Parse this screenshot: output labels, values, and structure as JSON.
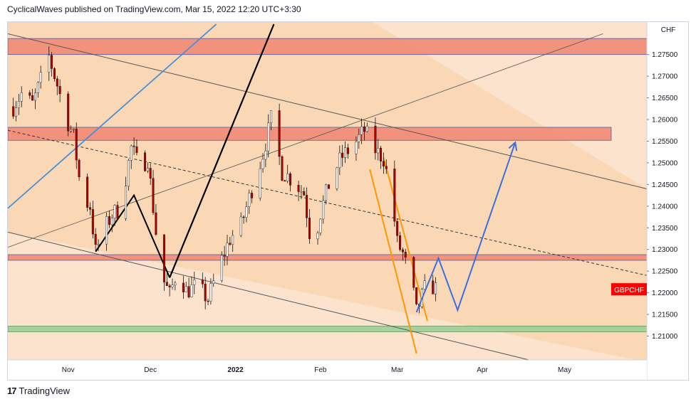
{
  "header": {
    "publisher_text": "CyclicalWaves published on TradingView.com, Mar 15, 2022 12:20 UTC+3:30"
  },
  "footer": {
    "logo_glyph": "17",
    "brand": "TradingView"
  },
  "colors": {
    "background": "#fbe3cd",
    "channel_fill": "#f9d4ac",
    "resistance_zone": "#f28b78",
    "support_zone": "#9fcf9a",
    "candle": "#b00000",
    "projection": "#3b6fe0",
    "wedge": "#ff9800",
    "trendline": "#000000",
    "fan_line": "#4a90d9",
    "symbol_badge": "#ff0000"
  },
  "chart_data": {
    "type": "candlestick",
    "symbol": "GBPCHF",
    "currency": "CHF",
    "x_ticks": [
      "Nov",
      "Dec",
      "2022",
      "Feb",
      "Mar",
      "Apr",
      "May"
    ],
    "y_ticks": [
      "1.27500",
      "1.27000",
      "1.26500",
      "1.26000",
      "1.25500",
      "1.25000",
      "1.24500",
      "1.24000",
      "1.23500",
      "1.23000",
      "1.22500",
      "1.22000",
      "1.21500",
      "1.21000"
    ],
    "ylim": [
      1.2045,
      1.2825
    ],
    "last_price": "1.22090",
    "price_path": [
      [
        "2021-10-12",
        1.263
      ],
      [
        "2021-10-15",
        1.266
      ],
      [
        "2021-10-19",
        1.2635
      ],
      [
        "2021-10-22",
        1.269
      ],
      [
        "2021-10-25",
        1.2745
      ],
      [
        "2021-10-28",
        1.268
      ],
      [
        "2021-10-31",
        1.261
      ],
      [
        "2021-11-03",
        1.256
      ],
      [
        "2021-11-06",
        1.242
      ],
      [
        "2021-11-09",
        1.24
      ],
      [
        "2021-11-11",
        1.2295
      ],
      [
        "2021-11-14",
        1.2345
      ],
      [
        "2021-11-17",
        1.238
      ],
      [
        "2021-11-20",
        1.2395
      ],
      [
        "2021-11-24",
        1.2535
      ],
      [
        "2021-11-27",
        1.249
      ],
      [
        "2021-11-30",
        1.251
      ],
      [
        "2021-12-03",
        1.234
      ],
      [
        "2021-12-06",
        1.2225
      ],
      [
        "2021-12-08",
        1.2195
      ],
      [
        "2021-12-11",
        1.2255
      ],
      [
        "2021-12-14",
        1.2205
      ],
      [
        "2021-12-18",
        1.2215
      ],
      [
        "2021-12-22",
        1.2185
      ],
      [
        "2021-12-26",
        1.226
      ],
      [
        "2021-12-30",
        1.2325
      ],
      [
        "2022-01-03",
        1.2355
      ],
      [
        "2022-01-07",
        1.244
      ],
      [
        "2022-01-11",
        1.252
      ],
      [
        "2022-01-14",
        1.26
      ],
      [
        "2022-01-18",
        1.248
      ],
      [
        "2022-01-22",
        1.246
      ],
      [
        "2022-01-26",
        1.243
      ],
      [
        "2022-01-29",
        1.2295
      ],
      [
        "2022-02-01",
        1.2385
      ],
      [
        "2022-02-05",
        1.247
      ],
      [
        "2022-02-09",
        1.2515
      ],
      [
        "2022-02-13",
        1.254
      ],
      [
        "2022-02-17",
        1.2575
      ],
      [
        "2022-02-21",
        1.253
      ],
      [
        "2022-02-24",
        1.251
      ],
      [
        "2022-02-27",
        1.242
      ],
      [
        "2022-03-01",
        1.2315
      ],
      [
        "2022-03-03",
        1.229
      ],
      [
        "2022-03-05",
        1.2245
      ],
      [
        "2022-03-07",
        1.2195
      ],
      [
        "2022-03-08",
        1.2155
      ],
      [
        "2022-03-10",
        1.219
      ],
      [
        "2022-03-12",
        1.2225
      ],
      [
        "2022-03-15",
        1.2209
      ]
    ],
    "zones": [
      {
        "from": 1.275,
        "to": 1.2787,
        "type": "resistance"
      },
      {
        "from": 1.2552,
        "to": 1.2582,
        "type": "resistance"
      },
      {
        "from": 1.2275,
        "to": 1.2288,
        "type": "resistance"
      },
      {
        "from": 1.211,
        "to": 1.2123,
        "type": "support"
      }
    ],
    "projection_path": [
      [
        "2022-03-08",
        1.2155
      ],
      [
        "2022-03-16",
        1.228
      ],
      [
        "2022-03-23",
        1.216
      ],
      [
        "2022-04-13",
        1.2547
      ]
    ]
  }
}
